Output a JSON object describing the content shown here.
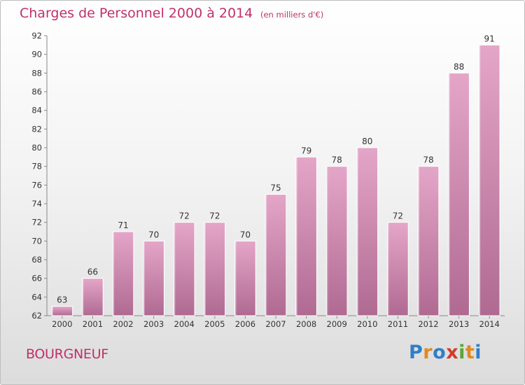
{
  "header": {
    "title": "Charges de Personnel 2000 à 2014",
    "subtitle": "(en milliers d'€)"
  },
  "footer": {
    "commune": "BOURGNEUF",
    "logo_letters": [
      {
        "char": "P",
        "color": "#2f7fc8"
      },
      {
        "char": "r",
        "color": "#e08a1e"
      },
      {
        "char": "o",
        "color": "#2f7fc8"
      },
      {
        "char": "x",
        "color": "#d33a2c"
      },
      {
        "char": "i",
        "color": "#5aa63a"
      },
      {
        "char": "t",
        "color": "#e08a1e"
      },
      {
        "char": "i",
        "color": "#2f7fc8"
      }
    ]
  },
  "chart_data": {
    "type": "bar",
    "title": "Charges de Personnel 2000 à 2014",
    "subtitle": "(en milliers d'€)",
    "categories": [
      "2000",
      "2001",
      "2002",
      "2003",
      "2004",
      "2005",
      "2006",
      "2007",
      "2008",
      "2009",
      "2010",
      "2011",
      "2012",
      "2013",
      "2014"
    ],
    "values": [
      63,
      66,
      71,
      70,
      72,
      72,
      70,
      75,
      79,
      78,
      80,
      72,
      78,
      88,
      91
    ],
    "ylim": [
      62,
      92
    ],
    "yticks": [
      62,
      64,
      66,
      68,
      70,
      72,
      74,
      76,
      78,
      80,
      82,
      84,
      86,
      88,
      90,
      92
    ],
    "grid": false,
    "bar_color": "#e4a6c8",
    "bar_color_dark": "#b06a92"
  }
}
